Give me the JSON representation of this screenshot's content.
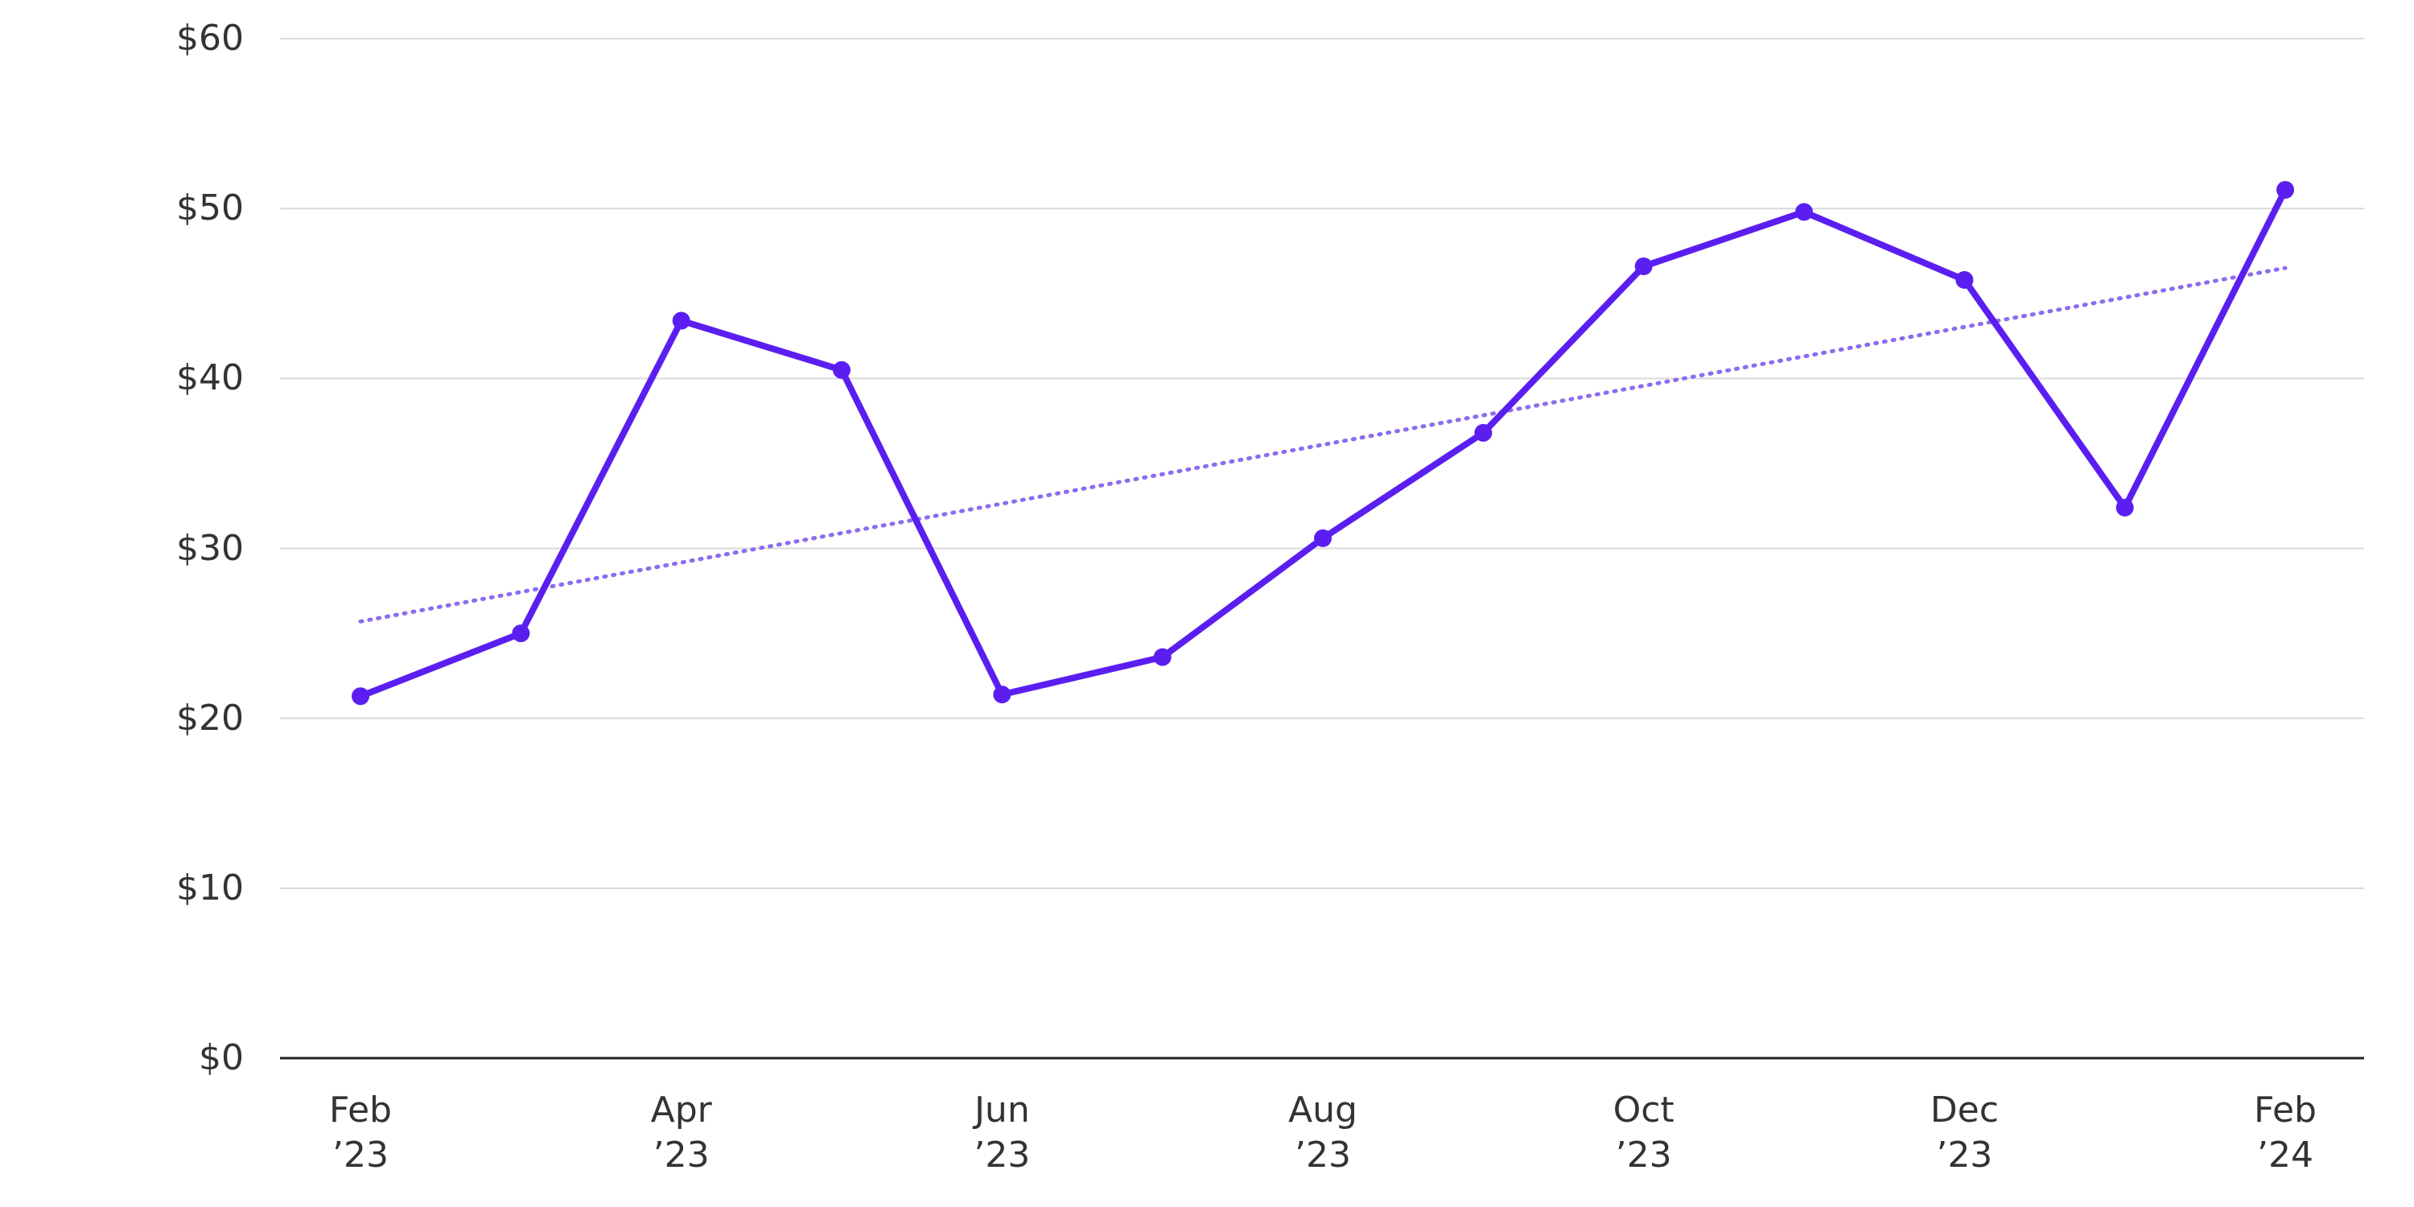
{
  "chart_data": {
    "type": "line",
    "categories": [
      "Feb\n’23",
      null,
      "Apr\n’23",
      null,
      "Jun\n’23",
      null,
      "Aug\n’23",
      null,
      "Oct\n’23",
      null,
      "Dec\n’23",
      null,
      "Feb\n’24"
    ],
    "series": [
      {
        "color": "#5a1ff0",
        "values": [
          21.3,
          25.0,
          43.4,
          40.5,
          21.4,
          23.6,
          30.6,
          36.8,
          46.6,
          49.8,
          45.8,
          32.4,
          51.1
        ]
      }
    ],
    "trendline": {
      "start": 25.7,
      "end": 46.5,
      "color": "#8b6cf0",
      "style": "dotted"
    },
    "ylim": [
      0,
      60
    ],
    "yticks": [
      {
        "value": 0,
        "label": "$0"
      },
      {
        "value": 10,
        "label": "$10"
      },
      {
        "value": 20,
        "label": "$20"
      },
      {
        "value": 30,
        "label": "$30"
      },
      {
        "value": 40,
        "label": "$40"
      },
      {
        "value": 50,
        "label": "$50"
      },
      {
        "value": 60,
        "label": "$60"
      }
    ],
    "grid": true
  }
}
